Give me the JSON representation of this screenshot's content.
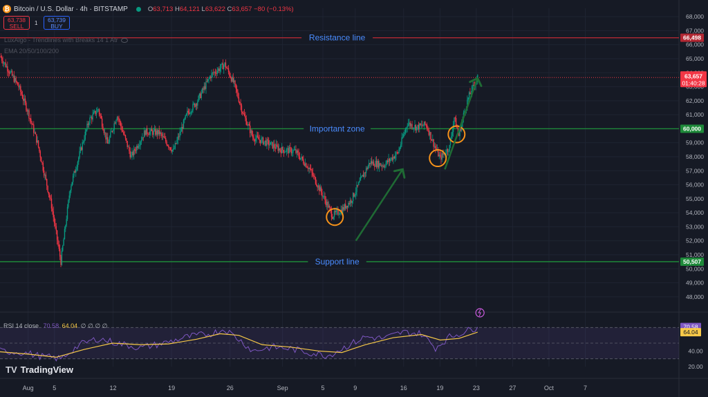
{
  "header": {
    "coin_glyph": "₿",
    "title": "Bitcoin / U.S. Dollar · 4h · BITSTAMP",
    "o_label": "O",
    "o_value": "63,713",
    "h_label": "H",
    "h_value": "64,121",
    "l_label": "L",
    "l_value": "63,622",
    "c_label": "C",
    "c_value": "63,657",
    "change": "−80 (−0.13%)"
  },
  "trade": {
    "sell_price": "63,738",
    "sell_label": "SELL",
    "spread": "1",
    "buy_price": "63,739",
    "buy_label": "BUY"
  },
  "indicators": {
    "luxalgo": "LuxAlgo - Trendlines with Breaks 14 1 Atr",
    "ema": "EMA 20/50/100/200"
  },
  "rsi_legend": {
    "name": "RSI 14 close",
    "rsi": "70.58",
    "ma": "64.04",
    "extra": "∅ ∅ ∅ ∅"
  },
  "branding": {
    "name": "TradingView"
  },
  "colors": {
    "background": "#161a25",
    "up": "#089981",
    "down": "#f23645",
    "resistance": "#b22833",
    "zone": "#1e8a3a",
    "annotation": "#2962ff",
    "rsi_line": "#7e57c2",
    "rsi_ma": "#f7c948",
    "circle": "#f7931a",
    "arrow": "#1f6b34"
  },
  "chart_data": {
    "type": "candlestick",
    "symbol": "BTCUSD",
    "exchange": "BITSTAMP",
    "interval": "4h",
    "ylim": [
      47500,
      68600
    ],
    "y_ticks": [
      "68,000",
      "67,000",
      "66,000",
      "65,000",
      "64,000",
      "63,000",
      "62,000",
      "61,000",
      "60,000",
      "59,000",
      "58,000",
      "57,000",
      "56,000",
      "55,000",
      "54,000",
      "53,000",
      "52,000",
      "51,000",
      "50,000",
      "49,000",
      "48,000"
    ],
    "x_ticks": [
      "Aug",
      "5",
      "12",
      "19",
      "26",
      "Sep",
      "5",
      "9",
      "16",
      "19",
      "23",
      "27",
      "Oct",
      "7"
    ],
    "price_path": [
      {
        "x": 0,
        "y": 65200
      },
      {
        "x": 4,
        "y": 63000
      },
      {
        "x": 6,
        "y": 61200
      },
      {
        "x": 8,
        "y": 59000
      },
      {
        "x": 11,
        "y": 54500
      },
      {
        "x": 13,
        "y": 50500
      },
      {
        "x": 15,
        "y": 55800
      },
      {
        "x": 17,
        "y": 58200
      },
      {
        "x": 19,
        "y": 60600
      },
      {
        "x": 21,
        "y": 61400
      },
      {
        "x": 23,
        "y": 58900
      },
      {
        "x": 25,
        "y": 61000
      },
      {
        "x": 28,
        "y": 58000
      },
      {
        "x": 31,
        "y": 59800
      },
      {
        "x": 34,
        "y": 59700
      },
      {
        "x": 37,
        "y": 58400
      },
      {
        "x": 40,
        "y": 61100
      },
      {
        "x": 42,
        "y": 61900
      },
      {
        "x": 45,
        "y": 63800
      },
      {
        "x": 48,
        "y": 64600
      },
      {
        "x": 50,
        "y": 63200
      },
      {
        "x": 52,
        "y": 61000
      },
      {
        "x": 54,
        "y": 59400
      },
      {
        "x": 57,
        "y": 59000
      },
      {
        "x": 60,
        "y": 58500
      },
      {
        "x": 63,
        "y": 58400
      },
      {
        "x": 66,
        "y": 57200
      },
      {
        "x": 69,
        "y": 55200
      },
      {
        "x": 71,
        "y": 53800
      },
      {
        "x": 73,
        "y": 54200
      },
      {
        "x": 75,
        "y": 54900
      },
      {
        "x": 77,
        "y": 56300
      },
      {
        "x": 79,
        "y": 57600
      },
      {
        "x": 82,
        "y": 57400
      },
      {
        "x": 85,
        "y": 58300
      },
      {
        "x": 87,
        "y": 60400
      },
      {
        "x": 89,
        "y": 60100
      },
      {
        "x": 91,
        "y": 60300
      },
      {
        "x": 93,
        "y": 58600
      },
      {
        "x": 94,
        "y": 57900
      },
      {
        "x": 96,
        "y": 58700
      },
      {
        "x": 97,
        "y": 60800
      },
      {
        "x": 98,
        "y": 59500
      },
      {
        "x": 99,
        "y": 61000
      },
      {
        "x": 100,
        "y": 62200
      },
      {
        "x": 102,
        "y": 63700
      }
    ],
    "x_range": [
      0,
      145
    ],
    "levels": [
      {
        "name": "Resistance line",
        "value": 66498,
        "label": "66,498",
        "color": "#b22833"
      },
      {
        "name": "Important zone",
        "value": 60000,
        "label": "60,000",
        "color": "#1e8a3a"
      },
      {
        "name": "Support line",
        "value": 50507,
        "label": "50,507",
        "color": "#1e8a3a"
      }
    ],
    "last_price": {
      "label": "63,657",
      "countdown": "01:40:28",
      "value": 63657
    },
    "highlight_circles": [
      {
        "x": 71.5,
        "y": 53700
      },
      {
        "x": 93.5,
        "y": 57900
      },
      {
        "x": 97.5,
        "y": 59600
      }
    ],
    "arrows": [
      {
        "from": {
          "x": 76,
          "y": 52000
        },
        "to": {
          "x": 86,
          "y": 57100
        }
      },
      {
        "from": {
          "x": 95,
          "y": 57100
        },
        "to": {
          "x": 102,
          "y": 63600
        }
      }
    ],
    "rsi": {
      "period": 14,
      "ylim": [
        20,
        80
      ],
      "ticks": [
        "70.58",
        "64.04",
        "40.00",
        "20.00"
      ],
      "bands": [
        70,
        50,
        30
      ],
      "last": 70.58,
      "ma_last": 64.04,
      "path": [
        {
          "x": 0,
          "y": 40
        },
        {
          "x": 5,
          "y": 38
        },
        {
          "x": 9,
          "y": 33
        },
        {
          "x": 13,
          "y": 30
        },
        {
          "x": 17,
          "y": 48
        },
        {
          "x": 21,
          "y": 56
        },
        {
          "x": 25,
          "y": 50
        },
        {
          "x": 30,
          "y": 44
        },
        {
          "x": 35,
          "y": 50
        },
        {
          "x": 40,
          "y": 58
        },
        {
          "x": 45,
          "y": 62
        },
        {
          "x": 48,
          "y": 68
        },
        {
          "x": 51,
          "y": 55
        },
        {
          "x": 54,
          "y": 40
        },
        {
          "x": 58,
          "y": 45
        },
        {
          "x": 62,
          "y": 43
        },
        {
          "x": 66,
          "y": 38
        },
        {
          "x": 70,
          "y": 34
        },
        {
          "x": 74,
          "y": 46
        },
        {
          "x": 78,
          "y": 58
        },
        {
          "x": 82,
          "y": 56
        },
        {
          "x": 86,
          "y": 64
        },
        {
          "x": 90,
          "y": 62
        },
        {
          "x": 93,
          "y": 44
        },
        {
          "x": 96,
          "y": 58
        },
        {
          "x": 99,
          "y": 64
        },
        {
          "x": 102,
          "y": 70.58
        }
      ],
      "ma_path": [
        {
          "x": 0,
          "y": 39
        },
        {
          "x": 6,
          "y": 36
        },
        {
          "x": 12,
          "y": 32
        },
        {
          "x": 18,
          "y": 42
        },
        {
          "x": 24,
          "y": 50
        },
        {
          "x": 30,
          "y": 48
        },
        {
          "x": 36,
          "y": 49
        },
        {
          "x": 42,
          "y": 55
        },
        {
          "x": 47,
          "y": 62
        },
        {
          "x": 51,
          "y": 60
        },
        {
          "x": 56,
          "y": 48
        },
        {
          "x": 62,
          "y": 45
        },
        {
          "x": 68,
          "y": 40
        },
        {
          "x": 73,
          "y": 38
        },
        {
          "x": 78,
          "y": 48
        },
        {
          "x": 84,
          "y": 57
        },
        {
          "x": 90,
          "y": 61
        },
        {
          "x": 94,
          "y": 54
        },
        {
          "x": 98,
          "y": 56
        },
        {
          "x": 102,
          "y": 64.04
        }
      ]
    }
  }
}
